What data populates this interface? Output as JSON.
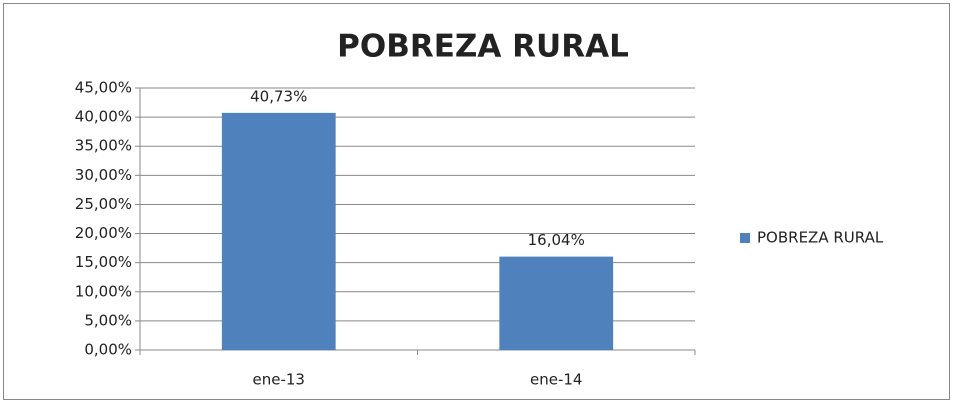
{
  "chart_data": {
    "type": "bar",
    "title": "POBREZA RURAL",
    "categories": [
      "ene-13",
      "ene-14"
    ],
    "series": [
      {
        "name": "POBREZA RURAL",
        "color": "#4f81bd",
        "values": [
          40.73,
          16.04
        ],
        "value_labels": [
          "40,73%",
          "16,04%"
        ]
      }
    ],
    "ylim": [
      0,
      45
    ],
    "yticks": [
      {
        "value": 0,
        "label": "0,00%"
      },
      {
        "value": 5,
        "label": "5,00%"
      },
      {
        "value": 10,
        "label": "10,00%"
      },
      {
        "value": 15,
        "label": "15,00%"
      },
      {
        "value": 20,
        "label": "20,00%"
      },
      {
        "value": 25,
        "label": "25,00%"
      },
      {
        "value": 30,
        "label": "30,00%"
      },
      {
        "value": 35,
        "label": "35,00%"
      },
      {
        "value": 40,
        "label": "40,00%"
      },
      {
        "value": 45,
        "label": "45,00%"
      }
    ],
    "grid": true,
    "legend": "right"
  }
}
